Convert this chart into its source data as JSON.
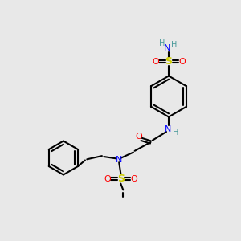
{
  "bg_color": "#e8e8e8",
  "atom_colors": {
    "C": "#000000",
    "H": "#4a9a9a",
    "N": "#0000ff",
    "O": "#ff0000",
    "S": "#cccc00"
  },
  "bond_color": "#000000",
  "bond_width": 1.5,
  "figsize": [
    3.0,
    3.0
  ],
  "dpi": 100
}
